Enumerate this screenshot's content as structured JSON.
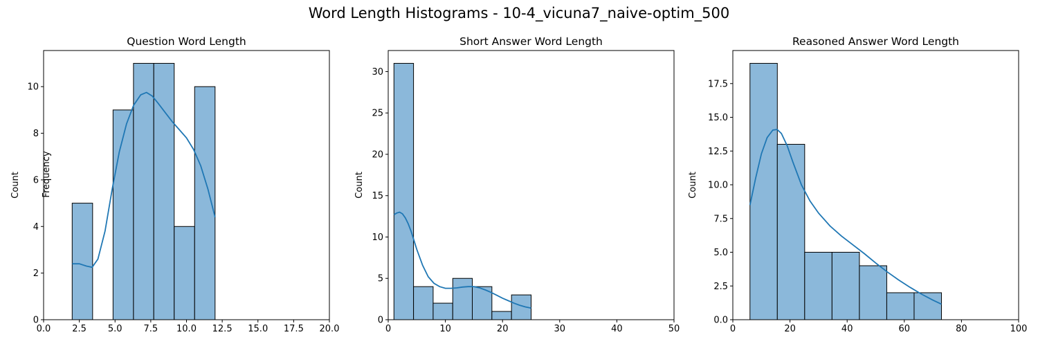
{
  "figure_title": "Word Length Histograms - 10-4_vicuna7_naive-optim_500",
  "colors": {
    "bar_fill": "#8bb8da",
    "bar_edge": "#000000",
    "kde_line": "#1f77b4"
  },
  "chart_data": [
    {
      "type": "bar",
      "title": "Question Word Length",
      "xlabel": "",
      "ylabel": "Count",
      "extra_label": "Frequency",
      "xlim": [
        0,
        20
      ],
      "ylim": [
        0,
        11.55
      ],
      "xticks": [
        0,
        2.5,
        5,
        7.5,
        10,
        12.5,
        15,
        17.5,
        20
      ],
      "xtick_labels": [
        "0.0",
        "2.5",
        "5.0",
        "7.5",
        "10.0",
        "12.5",
        "15.0",
        "17.5",
        "20.0"
      ],
      "yticks": [
        0,
        2,
        4,
        6,
        8,
        10
      ],
      "ytick_labels": [
        "0",
        "2",
        "4",
        "6",
        "8",
        "10"
      ],
      "bin_edges": [
        2,
        3.43,
        4.86,
        6.29,
        7.71,
        9.14,
        10.57,
        12
      ],
      "counts": [
        5,
        0,
        9,
        11,
        11,
        4,
        10
      ],
      "kde": {
        "x": [
          2,
          2.5,
          3,
          3.4,
          3.8,
          4.3,
          4.8,
          5.3,
          5.8,
          6.3,
          6.8,
          7.2,
          7.6,
          8.0,
          8.5,
          9.0,
          9.5,
          10.0,
          10.5,
          11.0,
          11.5,
          12.0
        ],
        "y": [
          2.4,
          2.4,
          2.3,
          2.25,
          2.6,
          3.8,
          5.6,
          7.2,
          8.4,
          9.2,
          9.65,
          9.75,
          9.6,
          9.3,
          8.9,
          8.5,
          8.15,
          7.8,
          7.3,
          6.6,
          5.6,
          4.4
        ]
      }
    },
    {
      "type": "bar",
      "title": "Short Answer Word Length",
      "xlabel": "",
      "ylabel": "Count",
      "xlim": [
        0,
        50
      ],
      "ylim": [
        0,
        32.55
      ],
      "xticks": [
        0,
        10,
        20,
        30,
        40,
        50
      ],
      "xtick_labels": [
        "0",
        "10",
        "20",
        "30",
        "40",
        "50"
      ],
      "yticks": [
        0,
        5,
        10,
        15,
        20,
        25,
        30
      ],
      "ytick_labels": [
        "0",
        "5",
        "10",
        "15",
        "20",
        "25",
        "30"
      ],
      "bin_edges": [
        1,
        4.43,
        7.86,
        11.29,
        14.71,
        18.14,
        21.57,
        25
      ],
      "counts": [
        31,
        4,
        2,
        5,
        4,
        1,
        3
      ],
      "kde": {
        "x": [
          1,
          1.5,
          2,
          2.5,
          3,
          3.5,
          4,
          4.5,
          5,
          6,
          7,
          8,
          9,
          10,
          11,
          12,
          13,
          14,
          15,
          16,
          17,
          18,
          19,
          20,
          21,
          22,
          23,
          24,
          25
        ],
        "y": [
          12.7,
          12.9,
          13.0,
          12.8,
          12.3,
          11.6,
          10.7,
          9.6,
          8.5,
          6.6,
          5.2,
          4.4,
          4.0,
          3.8,
          3.8,
          3.85,
          3.95,
          4.0,
          4.0,
          3.85,
          3.6,
          3.3,
          2.95,
          2.6,
          2.3,
          2.0,
          1.75,
          1.55,
          1.4
        ]
      }
    },
    {
      "type": "bar",
      "title": "Reasoned Answer Word Length",
      "xlabel": "",
      "ylabel": "Count",
      "xlim": [
        0,
        100
      ],
      "ylim": [
        0,
        19.95
      ],
      "xticks": [
        0,
        20,
        40,
        60,
        80,
        100
      ],
      "xtick_labels": [
        "0",
        "20",
        "40",
        "60",
        "80",
        "100"
      ],
      "yticks": [
        0,
        2.5,
        5,
        7.5,
        10,
        12.5,
        15,
        17.5
      ],
      "ytick_labels": [
        "0.0",
        "2.5",
        "5.0",
        "7.5",
        "10.0",
        "12.5",
        "15.0",
        "17.5"
      ],
      "bin_edges": [
        6,
        15.57,
        25.14,
        34.71,
        44.29,
        53.86,
        63.43,
        73
      ],
      "counts": [
        19,
        13,
        5,
        5,
        4,
        2,
        2
      ],
      "kde": {
        "x": [
          6,
          8,
          10,
          12,
          14,
          15.5,
          17,
          19,
          21,
          24,
          27,
          30,
          34,
          38,
          42,
          46,
          50,
          54,
          58,
          62,
          66,
          70,
          73
        ],
        "y": [
          8.5,
          10.5,
          12.3,
          13.5,
          14.05,
          14.1,
          13.8,
          12.9,
          11.7,
          10.0,
          8.8,
          7.9,
          6.95,
          6.2,
          5.55,
          4.9,
          4.2,
          3.55,
          2.95,
          2.4,
          1.9,
          1.45,
          1.15
        ]
      }
    }
  ]
}
